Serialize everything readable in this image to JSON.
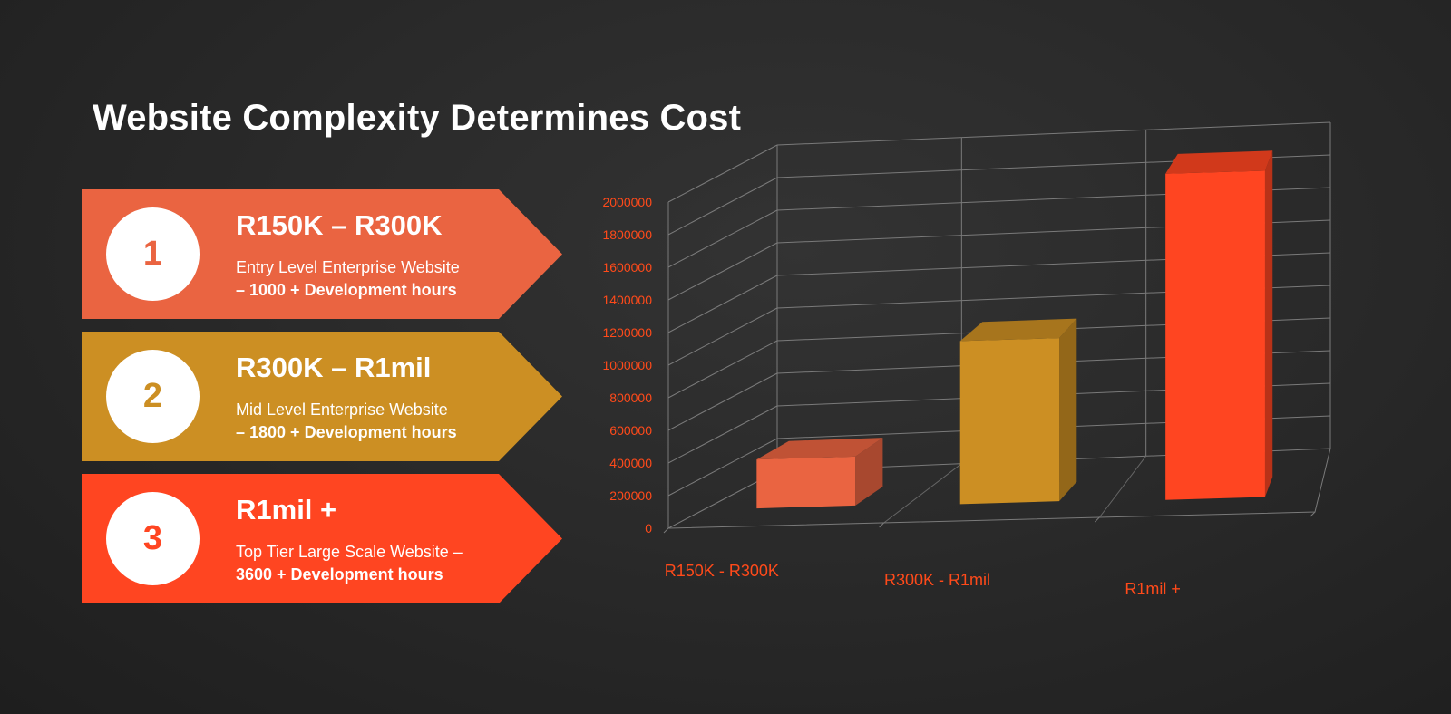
{
  "title": "Website Complexity Determines Cost",
  "tiers": [
    {
      "number": "1",
      "price": "R150K – R300K",
      "line1": "Entry Level Enterprise Website",
      "line2": "– 1000 + Development hours",
      "color": "#ea6441"
    },
    {
      "number": "2",
      "price": "R300K – R1mil",
      "line1": "Mid Level Enterprise Website",
      "line2": "– 1800 + Development hours",
      "color": "#cc8f23"
    },
    {
      "number": "3",
      "price": "R1mil +",
      "line1": "Top Tier Large Scale Website –",
      "line2": "3600 + Development hours",
      "color": "#ff4521"
    }
  ],
  "chart_data": {
    "type": "bar",
    "title": "",
    "xlabel": "",
    "ylabel": "",
    "categories": [
      "R150K - R300K",
      "R300K - R1mil",
      "R1mil +"
    ],
    "values": [
      300000,
      1000000,
      2000000
    ],
    "ylim": [
      0,
      2000000
    ],
    "yticks": [
      "0",
      "200000",
      "400000",
      "600000",
      "800000",
      "1000000",
      "1200000",
      "1400000",
      "1600000",
      "1800000",
      "2000000"
    ],
    "grid": true,
    "legend": "none",
    "label_color": "#ff4a1a",
    "colors": [
      "#ea6441",
      "#cc8f23",
      "#ff4521"
    ]
  }
}
